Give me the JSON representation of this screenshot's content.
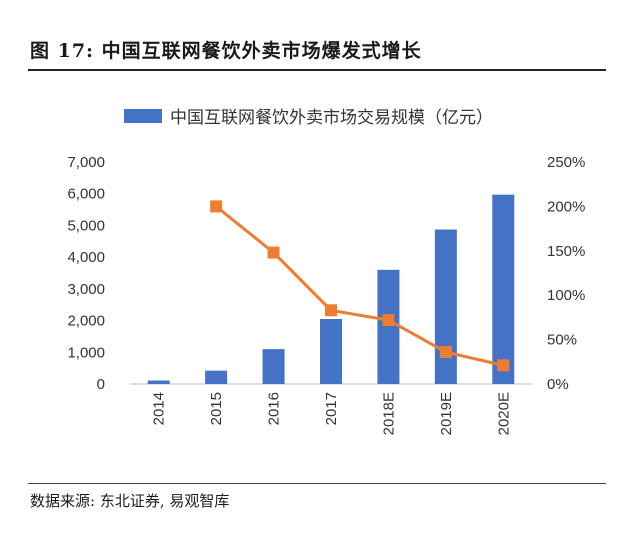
{
  "figure": {
    "title": "图 17: 中国互联网餐饮外卖市场爆发式增长",
    "source": "数据来源: 东北证券, 易观智库"
  },
  "colors": {
    "bar": "#4472C4",
    "line": "#ED7D31"
  },
  "chart_data": {
    "type": "bar",
    "categories": [
      "2014",
      "2015",
      "2016",
      "2017",
      "2018E",
      "2019E",
      "2020E"
    ],
    "series": [
      {
        "name": "中国互联网餐饮外卖市场交易规模（亿元）",
        "type": "bar",
        "axis": "left",
        "values": [
          110,
          420,
          1100,
          2050,
          3600,
          4870,
          5970
        ]
      },
      {
        "type": "line",
        "axis": "right",
        "values": [
          null,
          200,
          148,
          83,
          72,
          36,
          21
        ]
      }
    ],
    "y_left": {
      "ylim": [
        0,
        7000
      ],
      "ticks": [
        "7,000",
        "6,000",
        "5,000",
        "4,000",
        "3,000",
        "2,000",
        "1,000",
        "0"
      ],
      "tick_values": [
        7000,
        6000,
        5000,
        4000,
        3000,
        2000,
        1000,
        0
      ]
    },
    "y_right": {
      "ylim": [
        0,
        250
      ],
      "ticks": [
        "250%",
        "200%",
        "150%",
        "100%",
        "50%",
        "0%"
      ],
      "tick_values": [
        250,
        200,
        150,
        100,
        50,
        0
      ]
    },
    "legend_position": "top",
    "grid": false
  }
}
